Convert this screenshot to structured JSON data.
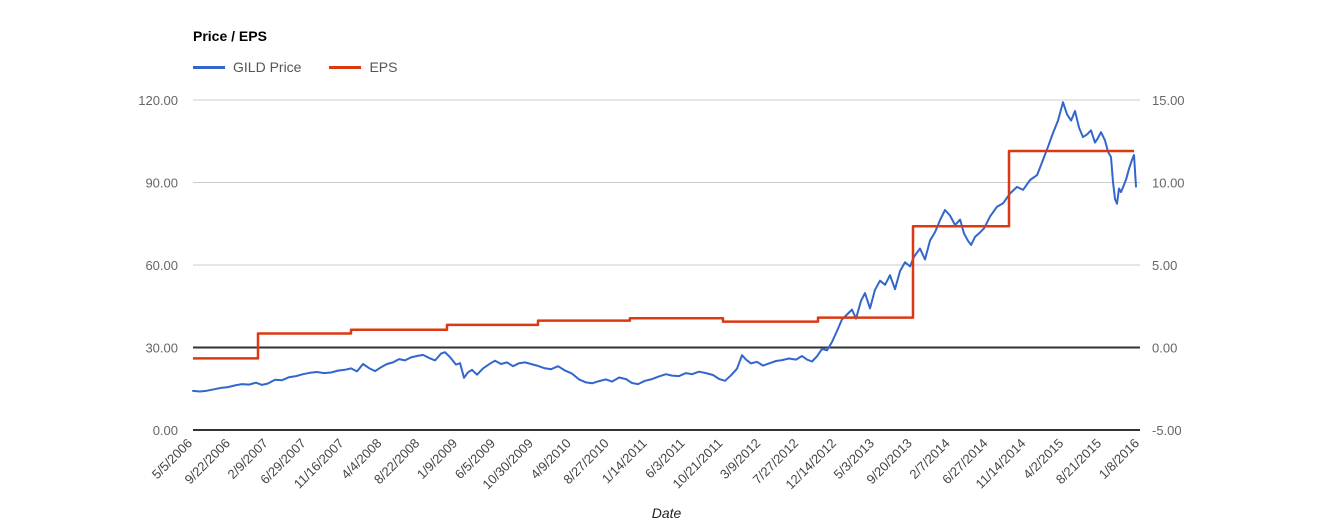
{
  "chart_data": {
    "type": "line",
    "title": "Price / EPS",
    "xlabel": "Date",
    "grid": {
      "light_color": "#cccccc",
      "dark_color": "#333333"
    },
    "left_axis": {
      "range": [
        0,
        120
      ],
      "tick_values": [
        0,
        30,
        60,
        90,
        120
      ],
      "tick_labels": [
        "0.00",
        "30.00",
        "60.00",
        "90.00",
        "120.00"
      ],
      "dark_line_values": [
        0,
        30
      ]
    },
    "right_axis": {
      "range": [
        -5,
        15
      ],
      "tick_values": [
        -5,
        0,
        5,
        10,
        15
      ],
      "tick_labels": [
        "-5.00",
        "0.00",
        "5.00",
        "10.00",
        "15.00"
      ]
    },
    "x_ticks": [
      "5/5/2006",
      "9/22/2006",
      "2/9/2007",
      "6/29/2007",
      "11/16/2007",
      "4/4/2008",
      "8/22/2008",
      "1/9/2009",
      "6/5/2009",
      "10/30/2009",
      "4/9/2010",
      "8/27/2010",
      "1/14/2011",
      "6/3/2011",
      "10/21/2011",
      "3/9/2012",
      "7/27/2012",
      "12/14/2012",
      "5/3/2013",
      "9/20/2013",
      "2/7/2014",
      "6/27/2014",
      "11/14/2014",
      "4/2/2015",
      "8/21/2015",
      "1/8/2016"
    ],
    "series": [
      {
        "name": "GILD Price",
        "color": "#3366cc",
        "axis": "left",
        "style": "line",
        "points": [
          [
            0.0,
            14.2
          ],
          [
            0.0074,
            14.0
          ],
          [
            0.0148,
            14.3
          ],
          [
            0.0222,
            14.8
          ],
          [
            0.0296,
            15.3
          ],
          [
            0.037,
            15.6
          ],
          [
            0.0443,
            16.2
          ],
          [
            0.0517,
            16.7
          ],
          [
            0.0591,
            16.5
          ],
          [
            0.0665,
            17.2
          ],
          [
            0.0729,
            16.4
          ],
          [
            0.0792,
            16.9
          ],
          [
            0.0866,
            18.3
          ],
          [
            0.094,
            18.1
          ],
          [
            0.1014,
            19.2
          ],
          [
            0.1088,
            19.6
          ],
          [
            0.1162,
            20.3
          ],
          [
            0.1235,
            20.8
          ],
          [
            0.1309,
            21.1
          ],
          [
            0.1383,
            20.7
          ],
          [
            0.1457,
            20.9
          ],
          [
            0.1531,
            21.6
          ],
          [
            0.1605,
            21.9
          ],
          [
            0.1668,
            22.4
          ],
          [
            0.1732,
            21.3
          ],
          [
            0.1795,
            24.0
          ],
          [
            0.1859,
            22.5
          ],
          [
            0.1922,
            21.4
          ],
          [
            0.1985,
            22.8
          ],
          [
            0.2049,
            24.0
          ],
          [
            0.2112,
            24.6
          ],
          [
            0.2175,
            25.8
          ],
          [
            0.2239,
            25.3
          ],
          [
            0.2302,
            26.4
          ],
          [
            0.2365,
            26.9
          ],
          [
            0.2429,
            27.3
          ],
          [
            0.2492,
            26.2
          ],
          [
            0.2556,
            25.3
          ],
          [
            0.2619,
            27.8
          ],
          [
            0.2661,
            28.3
          ],
          [
            0.2714,
            26.5
          ],
          [
            0.2777,
            23.8
          ],
          [
            0.282,
            24.3
          ],
          [
            0.2862,
            19.0
          ],
          [
            0.2904,
            21.0
          ],
          [
            0.2946,
            21.9
          ],
          [
            0.2999,
            20.1
          ],
          [
            0.3062,
            22.4
          ],
          [
            0.3126,
            23.9
          ],
          [
            0.3189,
            25.2
          ],
          [
            0.3253,
            24.0
          ],
          [
            0.3316,
            24.6
          ],
          [
            0.3379,
            23.2
          ],
          [
            0.3443,
            24.3
          ],
          [
            0.3506,
            24.6
          ],
          [
            0.357,
            24.0
          ],
          [
            0.3633,
            23.4
          ],
          [
            0.3707,
            22.5
          ],
          [
            0.3781,
            22.1
          ],
          [
            0.3855,
            23.2
          ],
          [
            0.3929,
            21.6
          ],
          [
            0.4002,
            20.5
          ],
          [
            0.4076,
            18.4
          ],
          [
            0.415,
            17.3
          ],
          [
            0.4214,
            17.0
          ],
          [
            0.4288,
            17.8
          ],
          [
            0.4361,
            18.4
          ],
          [
            0.4425,
            17.6
          ],
          [
            0.4499,
            19.1
          ],
          [
            0.4572,
            18.5
          ],
          [
            0.4636,
            17.1
          ],
          [
            0.4699,
            16.7
          ],
          [
            0.4773,
            17.9
          ],
          [
            0.4847,
            18.5
          ],
          [
            0.4921,
            19.5
          ],
          [
            0.4995,
            20.3
          ],
          [
            0.5058,
            19.8
          ],
          [
            0.5132,
            19.6
          ],
          [
            0.5206,
            20.7
          ],
          [
            0.5269,
            20.3
          ],
          [
            0.5343,
            21.2
          ],
          [
            0.5417,
            20.7
          ],
          [
            0.5491,
            20.0
          ],
          [
            0.5554,
            18.6
          ],
          [
            0.5618,
            17.9
          ],
          [
            0.5681,
            19.9
          ],
          [
            0.5744,
            22.3
          ],
          [
            0.5797,
            27.2
          ],
          [
            0.5839,
            25.6
          ],
          [
            0.5892,
            24.2
          ],
          [
            0.5956,
            24.8
          ],
          [
            0.6019,
            23.4
          ],
          [
            0.6082,
            24.2
          ],
          [
            0.6156,
            25.1
          ],
          [
            0.622,
            25.4
          ],
          [
            0.6294,
            26.0
          ],
          [
            0.6367,
            25.6
          ],
          [
            0.6431,
            26.9
          ],
          [
            0.6484,
            25.6
          ],
          [
            0.6536,
            24.9
          ],
          [
            0.6589,
            26.8
          ],
          [
            0.6642,
            29.5
          ],
          [
            0.6695,
            29.0
          ],
          [
            0.6748,
            32.0
          ],
          [
            0.68,
            36.0
          ],
          [
            0.6853,
            40.2
          ],
          [
            0.6906,
            42.0
          ],
          [
            0.6959,
            43.8
          ],
          [
            0.7001,
            40.5
          ],
          [
            0.7054,
            47.0
          ],
          [
            0.7096,
            49.8
          ],
          [
            0.7149,
            44.2
          ],
          [
            0.7202,
            51.0
          ],
          [
            0.7255,
            54.3
          ],
          [
            0.7308,
            52.8
          ],
          [
            0.736,
            56.3
          ],
          [
            0.7413,
            51.2
          ],
          [
            0.7466,
            57.8
          ],
          [
            0.7519,
            61.0
          ],
          [
            0.7572,
            59.5
          ],
          [
            0.7614,
            63.0
          ],
          [
            0.7677,
            66.0
          ],
          [
            0.773,
            62.0
          ],
          [
            0.7783,
            69.0
          ],
          [
            0.7836,
            72.0
          ],
          [
            0.7888,
            76.3
          ],
          [
            0.7941,
            80.0
          ],
          [
            0.7994,
            78.0
          ],
          [
            0.8047,
            74.5
          ],
          [
            0.81,
            76.5
          ],
          [
            0.8142,
            71.5
          ],
          [
            0.8184,
            68.8
          ],
          [
            0.8216,
            67.3
          ],
          [
            0.8258,
            70.2
          ],
          [
            0.83,
            71.5
          ],
          [
            0.8353,
            73.3
          ],
          [
            0.8416,
            77.6
          ],
          [
            0.849,
            81.2
          ],
          [
            0.8553,
            82.4
          ],
          [
            0.8627,
            86.0
          ],
          [
            0.8701,
            88.4
          ],
          [
            0.8765,
            87.3
          ],
          [
            0.8839,
            90.9
          ],
          [
            0.8913,
            92.7
          ],
          [
            0.8976,
            98.2
          ],
          [
            0.9029,
            103.0
          ],
          [
            0.9081,
            108.0
          ],
          [
            0.9134,
            112.5
          ],
          [
            0.9187,
            119.2
          ],
          [
            0.9229,
            114.8
          ],
          [
            0.9272,
            112.5
          ],
          [
            0.9314,
            116.0
          ],
          [
            0.9356,
            110.0
          ],
          [
            0.9398,
            106.5
          ],
          [
            0.944,
            107.5
          ],
          [
            0.9483,
            109.0
          ],
          [
            0.9525,
            104.5
          ],
          [
            0.9556,
            106.2
          ],
          [
            0.9588,
            108.3
          ],
          [
            0.963,
            105.3
          ],
          [
            0.9662,
            101.2
          ],
          [
            0.9694,
            99.2
          ],
          [
            0.9715,
            90.2
          ],
          [
            0.9736,
            84.0
          ],
          [
            0.9757,
            82.3
          ],
          [
            0.9778,
            87.8
          ],
          [
            0.9799,
            86.5
          ],
          [
            0.982,
            88.3
          ],
          [
            0.9852,
            91.0
          ],
          [
            0.9884,
            95.0
          ],
          [
            0.9915,
            98.2
          ],
          [
            0.9937,
            100.0
          ],
          [
            0.9958,
            88.5
          ]
        ]
      },
      {
        "name": "EPS",
        "color": "#dc3912",
        "axis": "right",
        "style": "step",
        "breakpoints": [
          [
            0.0,
            -0.66
          ],
          [
            0.0686,
            0.85
          ],
          [
            0.1668,
            1.07
          ],
          [
            0.2682,
            1.37
          ],
          [
            0.3643,
            1.63
          ],
          [
            0.4614,
            1.77
          ],
          [
            0.5597,
            1.57
          ],
          [
            0.66,
            1.81
          ],
          [
            0.7603,
            7.35
          ],
          [
            0.8617,
            11.91
          ]
        ],
        "end_t": 0.9937
      }
    ]
  }
}
